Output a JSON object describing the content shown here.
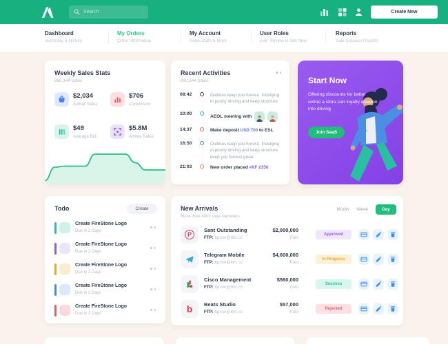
{
  "colors": {
    "brand_green": "#18B07F",
    "nav_active_green": "#2BCB8C",
    "promo_purple": "#8C4BE8",
    "day_button_green": "#1FBE7C"
  },
  "header": {
    "search_placeholder": "Search",
    "create_button": "Create New"
  },
  "nav": {
    "items": [
      {
        "title": "Dashboard",
        "subtitle": "Summary & History"
      },
      {
        "title": "My Orders",
        "subtitle": "Order Information"
      },
      {
        "title": "My Account",
        "subtitle": "Sales Stats & More"
      },
      {
        "title": "User Roles",
        "subtitle": "Edit, Review & Add New"
      },
      {
        "title": "Reports",
        "subtitle": "Sale Success Reports"
      }
    ]
  },
  "weekly_sales": {
    "title": "Weekly Sales Stats",
    "subtitle": "890,344 Sales",
    "stats": [
      {
        "value": "$2,034",
        "label": "Author Sales",
        "icon": "basket-icon",
        "color": "#4A7DFF",
        "bg": "#DEE9FD"
      },
      {
        "value": "$706",
        "label": "Commision",
        "icon": "chart-bars-icon",
        "color": "#F0616B",
        "bg": "#FCDFE2"
      },
      {
        "value": "$49",
        "label": "Avarage Bid",
        "icon": "bid-bars-icon",
        "color": "#2BC19C",
        "bg": "#D6F4EC"
      },
      {
        "value": "$5.8M",
        "label": "Alltime Sales",
        "icon": "frame-icon",
        "color": "#8B5CF6",
        "bg": "#EAE2FB"
      }
    ],
    "chart": {
      "type": "area",
      "values": [
        3,
        42,
        45,
        45,
        45,
        80,
        80,
        80,
        80,
        55,
        34,
        34,
        34
      ],
      "line_color": "#25BD82",
      "fill_color": "#D9F5E9"
    }
  },
  "activities": {
    "title": "Recent Activities",
    "subtitle": "890,344 Sales",
    "items": [
      {
        "time": "08:42",
        "dot_color": "#4A3A4E",
        "text": "Outlines keep you honest. Indulging in poorly driving and keep structure"
      },
      {
        "time": "10:00",
        "dot_color": "#2BC19C",
        "bold_text": "AEOL meeting with"
      },
      {
        "time": "14:37",
        "dot_color": "#F0616B",
        "bold_text": "Make deposit",
        "highlight": "USD 700",
        "highlight_color": "#5A78F0",
        "tail": "to ESL"
      },
      {
        "time": "16:50",
        "dot_color": "#4A7DFF",
        "text": "Outlines keep you honest. Indulging in poorly driving and keep structure keep you honest great"
      },
      {
        "time": "21:03",
        "dot_color": "#F5823B",
        "bold_text": "New order placed",
        "highlight": "#XF-2356",
        "highlight_color": "#8B5CF6"
      }
    ]
  },
  "promo": {
    "title": "Start Now",
    "description": "Offering discounts for better online a store can loyalty weapon into driving",
    "button": "Join SaaS",
    "button_color": "#21BD7A"
  },
  "todo": {
    "title": "Todo",
    "create_button": "Create",
    "items": [
      {
        "title": "Create FireStone Logo",
        "due": "Due in 2 Days",
        "bar_color": "#2BC19C",
        "tile_color": "#CFF2E7"
      },
      {
        "title": "Create FireStone Logo",
        "due": "Due in 2 Days",
        "bar_color": "#8B5CF6",
        "tile_color": "#EBE4FB"
      },
      {
        "title": "Create FireStone Logo",
        "due": "Due in 2 Days",
        "bar_color": "#F5A623",
        "tile_color": "#FBEDD2"
      },
      {
        "title": "Create FireStone Logo",
        "due": "Due in 2 Days",
        "bar_color": "#3E8EF0",
        "tile_color": "#D8EAFC"
      },
      {
        "title": "Create FireStone Logo",
        "due": "Due in 2 Days",
        "bar_color": "#EF5A65",
        "tile_color": "#FBD9DE"
      }
    ]
  },
  "arrivals": {
    "title": "New Arrivals",
    "subtitle": "More than 400+ new members",
    "filters": {
      "month": "Month",
      "week": "Week",
      "day": "Day"
    },
    "active_filter": "Day",
    "rows": [
      {
        "name": "Sant Outstanding",
        "ftp_label": "FTP:",
        "ftp_value": "bprow@bnc.cc",
        "amount": "$2,000,000",
        "paid_label": "Paid",
        "status": "Approved",
        "status_color": "#A458EE",
        "status_bg": "#F1E7FD",
        "logo": "pinterest-logo"
      },
      {
        "name": "Telegram Mobile",
        "ftp_label": "FTP:",
        "ftp_value": "bprow@bnc.cc",
        "amount": "$4,600,000",
        "paid_label": "Paid",
        "status": "In Progress",
        "status_color": "#F5A623",
        "status_bg": "#FDF1D7",
        "logo": "telegram-logo"
      },
      {
        "name": "Cisco Management",
        "ftp_label": "FTP:",
        "ftp_value": "bprow@bnc.cc",
        "amount": "$560,000",
        "paid_label": "Paid",
        "status": "Success",
        "status_color": "#2BC19C",
        "status_bg": "#D7F6EE",
        "logo": "cisco-logo"
      },
      {
        "name": "Beats Studio",
        "ftp_label": "FTP:",
        "ftp_value": "bprow@bnc.cc",
        "amount": "$57,000",
        "paid_label": "Paid",
        "status": "Rejected",
        "status_color": "#F0616B",
        "status_bg": "#FDE0E3",
        "logo": "beats-logo"
      }
    ],
    "row_action_icons": [
      "wallet-icon",
      "edit-icon",
      "delete-icon"
    ]
  }
}
